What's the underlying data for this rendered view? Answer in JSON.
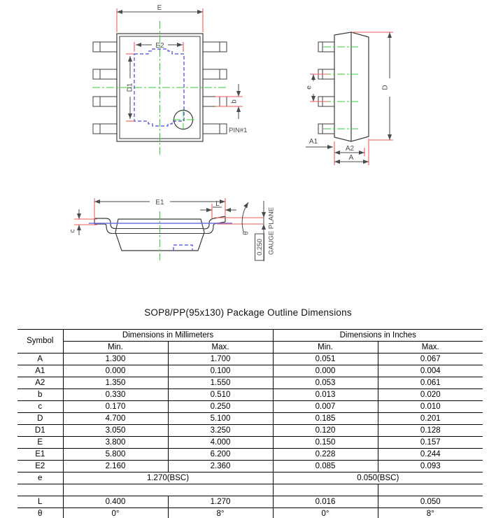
{
  "title": "SOP8/PP(95x130) Package Outline Dimensions",
  "colors": {
    "dimension_red": "#f45b5b",
    "centerline_green": "#35cc35",
    "pad_blue": "#4747e0",
    "outline_gray": "#3c3c3c",
    "table_border": "#000000"
  },
  "drawing": {
    "top_view": {
      "e_label": "E",
      "e2_label": "E2",
      "d1_label": "D1",
      "b_label": "b",
      "pin1_label": "PIN#1"
    },
    "side_view": {
      "e_label": "e",
      "d_label": "D",
      "a1_label": "A1",
      "a2_label": "A2",
      "a_label": "A"
    },
    "front_view": {
      "e1_label": "E1",
      "l_label": "L",
      "c_label": "c",
      "theta_label": "θ",
      "gauge_value": "0.250",
      "gauge_label": "GAUGE PLANE"
    }
  },
  "table": {
    "header": {
      "symbol": "Symbol",
      "mm": "Dimensions in Millimeters",
      "inches": "Dimensions in Inches",
      "min": "Min.",
      "max": "Max."
    },
    "rows": [
      {
        "symbol": "A",
        "cells": [
          "1.300",
          "1.700",
          "0.051",
          "0.067"
        ]
      },
      {
        "symbol": "A1",
        "cells": [
          "0.000",
          "0.100",
          "0.000",
          "0.004"
        ]
      },
      {
        "symbol": "A2",
        "cells": [
          "1.350",
          "1.550",
          "0.053",
          "0.061"
        ]
      },
      {
        "symbol": "b",
        "cells": [
          "0.330",
          "0.510",
          "0.013",
          "0.020"
        ]
      },
      {
        "symbol": "c",
        "cells": [
          "0.170",
          "0.250",
          "0.007",
          "0.010"
        ]
      },
      {
        "symbol": "D",
        "cells": [
          "4.700",
          "5.100",
          "0.185",
          "0.201"
        ]
      },
      {
        "symbol": "D1",
        "cells": [
          "3.050",
          "3.250",
          "0.120",
          "0.128"
        ]
      },
      {
        "symbol": "E",
        "cells": [
          "3.800",
          "4.000",
          "0.150",
          "0.157"
        ]
      },
      {
        "symbol": "E1",
        "cells": [
          "5.800",
          "6.200",
          "0.228",
          "0.244"
        ]
      },
      {
        "symbol": "E2",
        "cells": [
          "2.160",
          "2.360",
          "0.085",
          "0.093"
        ]
      },
      {
        "symbol": "e",
        "cells": [
          "1.270(BSC)",
          "0.050(BSC)"
        ],
        "colspans": [
          2,
          2
        ]
      },
      {
        "symbol": "",
        "cells": [
          "",
          "",
          ""
        ],
        "colspans": [
          2,
          1,
          1
        ]
      },
      {
        "symbol": "L",
        "cells": [
          "0.400",
          "1.270",
          "0.016",
          "0.050"
        ]
      },
      {
        "symbol": "θ",
        "cells": [
          "0°",
          "8°",
          "0°",
          "8°"
        ]
      }
    ]
  }
}
